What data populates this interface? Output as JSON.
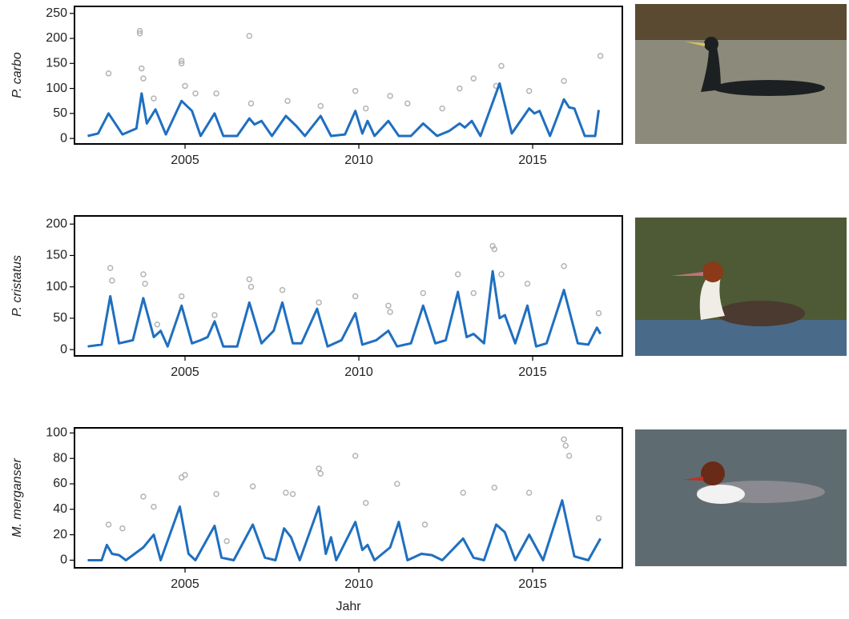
{
  "chart_data": [
    {
      "type": "line",
      "ylabel": "P. carbo",
      "ylim": [
        -11,
        264
      ],
      "yticks": [
        0,
        50,
        100,
        150,
        200,
        250
      ],
      "xlim": [
        2001.82,
        2017.58
      ],
      "xticks": [
        2005,
        2010,
        2015
      ],
      "line": {
        "color": "#1f6fc0",
        "x": [
          2002.2,
          2002.5,
          2002.8,
          2003.2,
          2003.6,
          2003.75,
          2003.9,
          2004.15,
          2004.45,
          2004.9,
          2005.2,
          2005.45,
          2005.85,
          2006.1,
          2006.5,
          2006.85,
          2007.0,
          2007.2,
          2007.5,
          2007.9,
          2008.2,
          2008.45,
          2008.9,
          2009.2,
          2009.6,
          2009.9,
          2010.1,
          2010.25,
          2010.45,
          2010.85,
          2011.15,
          2011.5,
          2011.85,
          2012.25,
          2012.6,
          2012.9,
          2013.05,
          2013.25,
          2013.5,
          2014.05,
          2014.4,
          2014.9,
          2015.05,
          2015.2,
          2015.5,
          2015.9,
          2016.05,
          2016.2,
          2016.5,
          2016.8,
          2016.9
        ],
        "values": [
          5,
          10,
          50,
          8,
          20,
          90,
          30,
          58,
          8,
          75,
          55,
          5,
          50,
          5,
          5,
          40,
          28,
          35,
          5,
          45,
          25,
          5,
          45,
          5,
          8,
          55,
          10,
          35,
          5,
          35,
          5,
          5,
          30,
          5,
          15,
          30,
          22,
          35,
          5,
          110,
          10,
          60,
          50,
          55,
          5,
          78,
          62,
          60,
          5,
          5,
          57
        ]
      },
      "points": {
        "color": "#b4b4b4",
        "x": [
          2002.8,
          2003.7,
          2003.7,
          2003.75,
          2003.8,
          2004.1,
          2004.9,
          2004.9,
          2005.0,
          2005.3,
          2005.9,
          2006.85,
          2006.9,
          2007.95,
          2008.9,
          2009.9,
          2010.2,
          2010.9,
          2011.4,
          2012.4,
          2012.9,
          2013.3,
          2013.95,
          2014.1,
          2014.9,
          2015.9,
          2016.95
        ],
        "values": [
          130,
          215,
          210,
          140,
          120,
          80,
          155,
          150,
          105,
          90,
          90,
          205,
          70,
          75,
          65,
          95,
          60,
          85,
          70,
          60,
          100,
          120,
          105,
          145,
          95,
          115,
          165
        ]
      }
    },
    {
      "type": "line",
      "ylabel": "P. cristatus",
      "ylim": [
        -10,
        213
      ],
      "yticks": [
        0,
        50,
        100,
        150,
        200
      ],
      "xlim": [
        2001.82,
        2017.58
      ],
      "xticks": [
        2005,
        2010,
        2015
      ],
      "line": {
        "color": "#1f6fc0",
        "x": [
          2002.2,
          2002.6,
          2002.85,
          2003.1,
          2003.5,
          2003.8,
          2004.1,
          2004.3,
          2004.5,
          2004.9,
          2005.2,
          2005.45,
          2005.65,
          2005.85,
          2006.1,
          2006.5,
          2006.85,
          2007.2,
          2007.55,
          2007.8,
          2008.1,
          2008.35,
          2008.8,
          2009.1,
          2009.5,
          2009.9,
          2010.1,
          2010.5,
          2010.85,
          2011.1,
          2011.5,
          2011.85,
          2012.2,
          2012.5,
          2012.85,
          2013.1,
          2013.3,
          2013.6,
          2013.85,
          2014.05,
          2014.2,
          2014.5,
          2014.85,
          2015.1,
          2015.4,
          2015.9,
          2016.3,
          2016.6,
          2016.85,
          2016.95
        ],
        "values": [
          5,
          8,
          85,
          10,
          15,
          82,
          20,
          30,
          5,
          70,
          10,
          15,
          20,
          45,
          5,
          5,
          75,
          10,
          30,
          75,
          10,
          10,
          65,
          5,
          15,
          58,
          8,
          15,
          30,
          5,
          10,
          70,
          10,
          15,
          92,
          20,
          25,
          10,
          125,
          50,
          55,
          10,
          70,
          5,
          10,
          95,
          10,
          8,
          35,
          25
        ]
      },
      "points": {
        "color": "#b4b4b4",
        "x": [
          2002.85,
          2002.9,
          2003.8,
          2003.85,
          2004.2,
          2004.9,
          2005.85,
          2006.85,
          2006.9,
          2007.8,
          2008.85,
          2009.9,
          2010.85,
          2010.9,
          2011.85,
          2012.85,
          2013.3,
          2013.85,
          2013.9,
          2014.1,
          2014.85,
          2015.9,
          2016.9
        ],
        "values": [
          130,
          110,
          120,
          105,
          40,
          85,
          55,
          112,
          100,
          95,
          75,
          85,
          70,
          60,
          90,
          120,
          90,
          165,
          160,
          120,
          105,
          133,
          58
        ]
      }
    },
    {
      "type": "line",
      "ylabel": "M. merganser",
      "xlabel": "Jahr",
      "ylim": [
        -6,
        104
      ],
      "yticks": [
        0,
        20,
        40,
        60,
        80,
        100
      ],
      "xlim": [
        2001.82,
        2017.58
      ],
      "xticks": [
        2005,
        2010,
        2015
      ],
      "line": {
        "color": "#1f6fc0",
        "x": [
          2002.2,
          2002.6,
          2002.75,
          2002.9,
          2003.1,
          2003.3,
          2003.8,
          2004.1,
          2004.3,
          2004.85,
          2005.1,
          2005.3,
          2005.85,
          2006.05,
          2006.4,
          2006.95,
          2007.3,
          2007.6,
          2007.85,
          2008.05,
          2008.3,
          2008.85,
          2009.05,
          2009.2,
          2009.35,
          2009.9,
          2010.1,
          2010.25,
          2010.45,
          2010.9,
          2011.15,
          2011.4,
          2011.8,
          2012.1,
          2012.4,
          2013.0,
          2013.3,
          2013.6,
          2013.95,
          2014.2,
          2014.5,
          2014.9,
          2015.3,
          2015.85,
          2016.2,
          2016.6,
          2016.95
        ],
        "values": [
          0,
          0,
          12,
          5,
          4,
          0,
          10,
          20,
          0,
          42,
          5,
          0,
          27,
          2,
          0,
          28,
          2,
          0,
          25,
          18,
          0,
          42,
          5,
          18,
          0,
          30,
          8,
          12,
          0,
          10,
          30,
          0,
          5,
          4,
          0,
          17,
          2,
          0,
          28,
          22,
          0,
          20,
          0,
          47,
          3,
          0,
          17
        ]
      },
      "points": {
        "color": "#b4b4b4",
        "x": [
          2002.8,
          2003.2,
          2003.8,
          2004.1,
          2004.9,
          2005.0,
          2005.9,
          2006.2,
          2006.95,
          2007.9,
          2008.1,
          2008.85,
          2008.9,
          2009.9,
          2010.2,
          2011.1,
          2011.9,
          2013.0,
          2013.9,
          2014.9,
          2015.9,
          2015.95,
          2016.05,
          2016.9
        ],
        "values": [
          28,
          25,
          50,
          42,
          65,
          67,
          52,
          15,
          58,
          53,
          52,
          72,
          68,
          82,
          45,
          60,
          28,
          53,
          57,
          53,
          95,
          90,
          82,
          33
        ]
      }
    }
  ]
}
